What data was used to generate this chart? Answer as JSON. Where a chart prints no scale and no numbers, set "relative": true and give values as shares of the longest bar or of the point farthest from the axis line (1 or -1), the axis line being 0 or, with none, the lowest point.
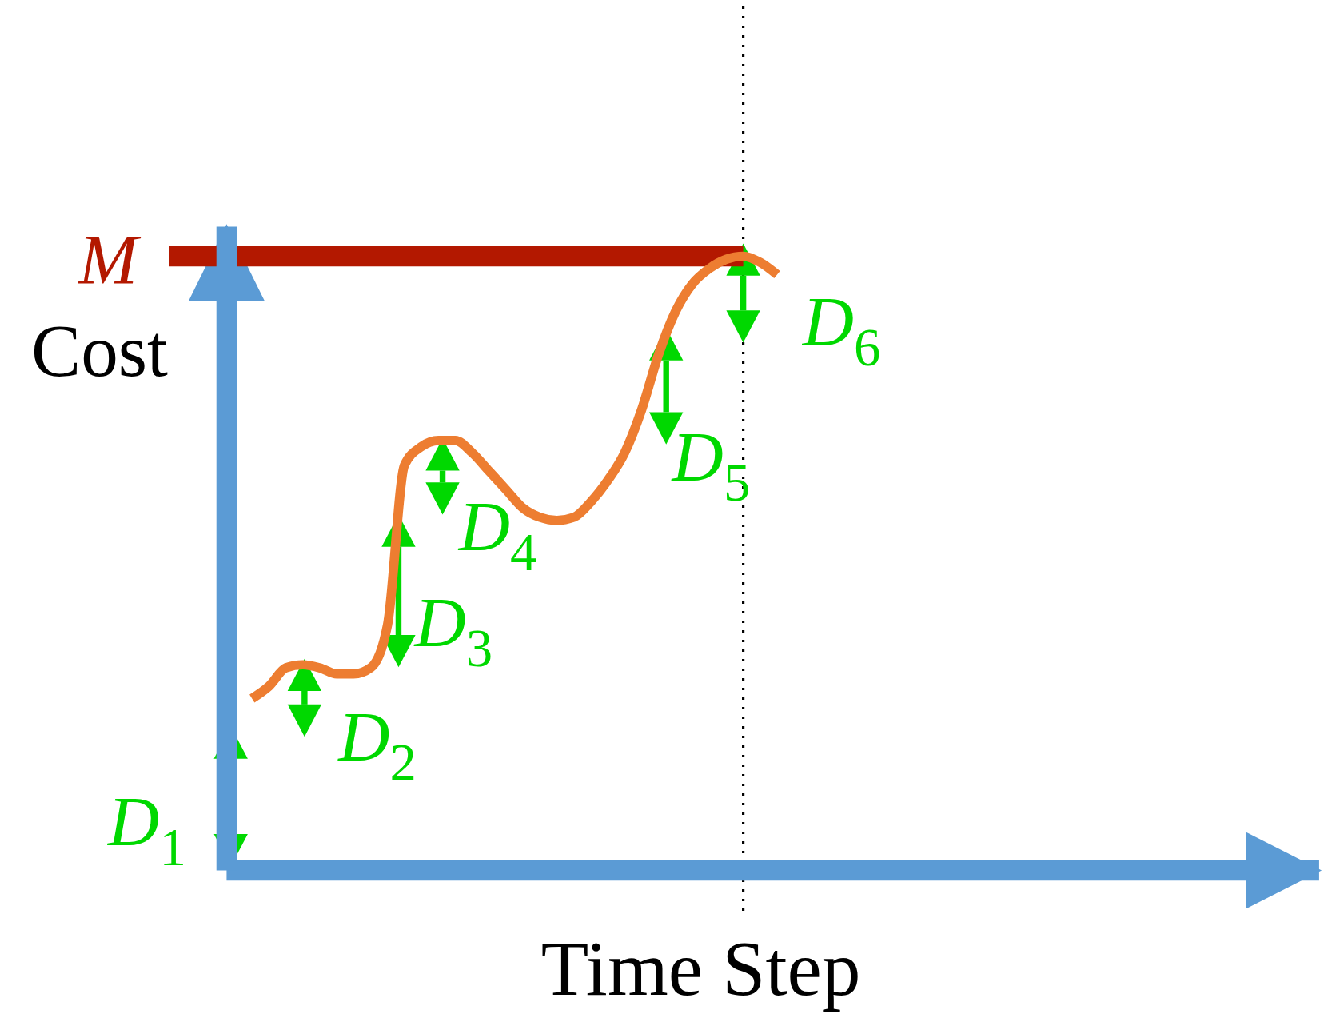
{
  "chart_data": {
    "type": "line",
    "xlabel": "Time Step",
    "ylabel": "Cost",
    "relative": true,
    "marker": "none",
    "categories": [
      null,
      null,
      null,
      null,
      null,
      null,
      null,
      null,
      null,
      null,
      null,
      null,
      null,
      null,
      null,
      null,
      null,
      null,
      null,
      null,
      null,
      null,
      null,
      null,
      null,
      null,
      null,
      null,
      null,
      null,
      null,
      null
    ],
    "series": [
      {
        "color": "#ed7d31",
        "values": [
          0.28,
          0.3,
          0.33,
          0.335,
          0.33,
          0.32,
          0.32,
          0.33,
          0.4,
          0.66,
          0.69,
          0.7,
          0.7,
          0.68,
          0.65,
          0.62,
          0.59,
          0.575,
          0.57,
          0.575,
          0.6,
          0.635,
          0.68,
          0.75,
          0.84,
          0.91,
          0.955,
          0.98,
          0.995,
          1,
          0.99,
          0.97
        ]
      }
    ],
    "ref_lines": [
      {
        "axis": "y",
        "value": 1,
        "label": "M",
        "color": "#b31800"
      }
    ],
    "annotations": [
      "D$_{1}$",
      "D$_{2}$",
      "D$_{3}$",
      "D$_{4}$",
      "D$_{5}$",
      "D$_{6}$"
    ]
  }
}
